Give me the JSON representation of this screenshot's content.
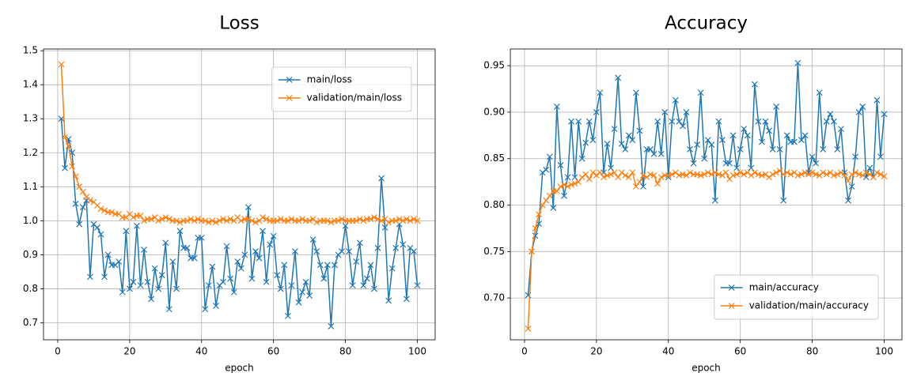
{
  "chart_data": [
    {
      "type": "line",
      "title": "Loss",
      "xlabel": "epoch",
      "x": [
        1,
        2,
        3,
        4,
        5,
        6,
        7,
        8,
        9,
        10,
        11,
        12,
        13,
        14,
        15,
        16,
        17,
        18,
        19,
        20,
        21,
        22,
        23,
        24,
        25,
        26,
        27,
        28,
        29,
        30,
        31,
        32,
        33,
        34,
        35,
        36,
        37,
        38,
        39,
        40,
        41,
        42,
        43,
        44,
        45,
        46,
        47,
        48,
        49,
        50,
        51,
        52,
        53,
        54,
        55,
        56,
        57,
        58,
        59,
        60,
        61,
        62,
        63,
        64,
        65,
        66,
        67,
        68,
        69,
        70,
        71,
        72,
        73,
        74,
        75,
        76,
        77,
        78,
        79,
        80,
        81,
        82,
        83,
        84,
        85,
        86,
        87,
        88,
        89,
        90,
        91,
        92,
        93,
        94,
        95,
        96,
        97,
        98,
        99,
        100
      ],
      "series": [
        {
          "name": "main/loss",
          "color": "#1f77b4",
          "values": [
            1.3,
            1.155,
            1.24,
            1.2,
            1.05,
            0.99,
            1.04,
            1.06,
            0.835,
            0.99,
            0.98,
            0.96,
            0.835,
            0.9,
            0.87,
            0.87,
            0.88,
            0.79,
            0.97,
            0.8,
            0.82,
            0.985,
            0.81,
            0.915,
            0.82,
            0.77,
            0.86,
            0.8,
            0.84,
            0.935,
            0.74,
            0.88,
            0.8,
            0.97,
            0.92,
            0.92,
            0.89,
            0.89,
            0.95,
            0.95,
            0.74,
            0.81,
            0.865,
            0.75,
            0.81,
            0.82,
            0.925,
            0.83,
            0.79,
            0.88,
            0.86,
            0.9,
            1.04,
            0.83,
            0.91,
            0.89,
            0.97,
            0.82,
            0.93,
            0.955,
            0.84,
            0.8,
            0.87,
            0.72,
            0.81,
            0.91,
            0.76,
            0.79,
            0.82,
            0.78,
            0.945,
            0.91,
            0.87,
            0.83,
            0.87,
            0.69,
            0.87,
            0.9,
            0.91,
            0.985,
            0.91,
            0.81,
            0.88,
            0.935,
            0.81,
            0.83,
            0.87,
            0.8,
            0.92,
            1.125,
            0.98,
            0.765,
            0.86,
            0.92,
            0.99,
            0.93,
            0.77,
            0.92,
            0.91,
            0.81
          ]
        },
        {
          "name": "validation/main/loss",
          "color": "#ff7f0e",
          "values": [
            1.46,
            1.245,
            1.22,
            1.16,
            1.13,
            1.1,
            1.085,
            1.07,
            1.06,
            1.055,
            1.045,
            1.035,
            1.03,
            1.025,
            1.025,
            1.02,
            1.02,
            1.01,
            1.01,
            1.02,
            1.01,
            1.015,
            1.015,
            1.0,
            1.005,
            1.005,
            1.01,
            1.0,
            1.005,
            1.01,
            1.005,
            1.0,
            1.0,
            0.995,
            1.0,
            1.0,
            1.005,
            1.0,
            1.005,
            1.0,
            1.0,
            0.995,
            1.0,
            0.995,
            1.0,
            1.005,
            1.0,
            1.005,
            1.0,
            1.01,
            1.0,
            1.005,
            1.005,
            1.0,
            0.995,
            1.0,
            1.01,
            1.005,
            1.0,
            1.0,
            1.0,
            1.005,
            1.0,
            1.0,
            1.005,
            1.0,
            1.0,
            1.005,
            1.0,
            1.0,
            1.005,
            0.995,
            1.0,
            1.0,
            1.0,
            0.995,
            1.0,
            1.0,
            1.005,
            1.0,
            1.0,
            1.0,
            1.0,
            1.005,
            1.0,
            1.005,
            1.005,
            1.01,
            1.005,
            1.0,
            1.005,
            0.995,
            1.0,
            1.0,
            1.005,
            1.0,
            1.005,
            1.0,
            1.005,
            1.0
          ]
        }
      ],
      "xlim": [
        -3.95,
        104.95
      ],
      "xticks": [
        0,
        20,
        40,
        60,
        80,
        100
      ],
      "ylim": [
        0.65,
        1.505
      ],
      "yticks": [
        0.7,
        0.8,
        0.9,
        {
          "value": 1,
          "label": "1.0"
        },
        1.1,
        1.2,
        1.3,
        1.4,
        1.5
      ],
      "grid": true,
      "legend": "upper right"
    },
    {
      "type": "line",
      "title": "Accuracy",
      "xlabel": "epoch",
      "x": [
        1,
        2,
        3,
        4,
        5,
        6,
        7,
        8,
        9,
        10,
        11,
        12,
        13,
        14,
        15,
        16,
        17,
        18,
        19,
        20,
        21,
        22,
        23,
        24,
        25,
        26,
        27,
        28,
        29,
        30,
        31,
        32,
        33,
        34,
        35,
        36,
        37,
        38,
        39,
        40,
        41,
        42,
        43,
        44,
        45,
        46,
        47,
        48,
        49,
        50,
        51,
        52,
        53,
        54,
        55,
        56,
        57,
        58,
        59,
        60,
        61,
        62,
        63,
        64,
        65,
        66,
        67,
        68,
        69,
        70,
        71,
        72,
        73,
        74,
        75,
        76,
        77,
        78,
        79,
        80,
        81,
        82,
        83,
        84,
        85,
        86,
        87,
        88,
        89,
        90,
        91,
        92,
        93,
        94,
        95,
        96,
        97,
        98,
        99,
        100
      ],
      "series": [
        {
          "name": "main/accuracy",
          "color": "#1f77b4",
          "values": [
            0.703,
            0.75,
            0.767,
            0.78,
            0.835,
            0.838,
            0.852,
            0.797,
            0.906,
            0.843,
            0.81,
            0.83,
            0.89,
            0.83,
            0.89,
            0.85,
            0.867,
            0.89,
            0.87,
            0.9,
            0.921,
            0.835,
            0.866,
            0.84,
            0.882,
            0.937,
            0.866,
            0.86,
            0.875,
            0.87,
            0.921,
            0.88,
            0.82,
            0.86,
            0.86,
            0.855,
            0.89,
            0.855,
            0.9,
            0.83,
            0.89,
            0.913,
            0.89,
            0.885,
            0.9,
            0.86,
            0.845,
            0.865,
            0.921,
            0.85,
            0.87,
            0.865,
            0.805,
            0.89,
            0.87,
            0.845,
            0.845,
            0.875,
            0.84,
            0.86,
            0.882,
            0.875,
            0.84,
            0.93,
            0.89,
            0.868,
            0.89,
            0.88,
            0.86,
            0.906,
            0.86,
            0.805,
            0.875,
            0.868,
            0.868,
            0.953,
            0.87,
            0.875,
            0.835,
            0.852,
            0.845,
            0.921,
            0.86,
            0.89,
            0.898,
            0.89,
            0.86,
            0.882,
            0.835,
            0.805,
            0.82,
            0.852,
            0.9,
            0.906,
            0.83,
            0.84,
            0.83,
            0.913,
            0.852,
            0.898
          ]
        },
        {
          "name": "validation/main/accuracy",
          "color": "#ff7f0e",
          "values": [
            0.667,
            0.75,
            0.775,
            0.79,
            0.8,
            0.805,
            0.81,
            0.815,
            0.815,
            0.82,
            0.822,
            0.82,
            0.822,
            0.823,
            0.825,
            0.83,
            0.833,
            0.828,
            0.835,
            0.832,
            0.835,
            0.83,
            0.832,
            0.833,
            0.835,
            0.83,
            0.835,
            0.832,
            0.83,
            0.835,
            0.82,
            0.825,
            0.832,
            0.83,
            0.833,
            0.832,
            0.823,
            0.83,
            0.832,
            0.832,
            0.833,
            0.835,
            0.832,
            0.833,
            0.832,
            0.835,
            0.833,
            0.833,
            0.832,
            0.833,
            0.835,
            0.833,
            0.835,
            0.833,
            0.832,
            0.835,
            0.828,
            0.832,
            0.833,
            0.835,
            0.833,
            0.835,
            0.832,
            0.835,
            0.833,
            0.832,
            0.833,
            0.83,
            0.833,
            0.835,
            0.837,
            0.833,
            0.835,
            0.833,
            0.835,
            0.832,
            0.833,
            0.835,
            0.833,
            0.835,
            0.833,
            0.832,
            0.835,
            0.833,
            0.835,
            0.832,
            0.833,
            0.835,
            0.832,
            0.826,
            0.833,
            0.835,
            0.833,
            0.832,
            0.835,
            0.833,
            0.83,
            0.835,
            0.833,
            0.831
          ]
        }
      ],
      "xlim": [
        -3.95,
        104.95
      ],
      "xticks": [
        0,
        20,
        40,
        60,
        80,
        100
      ],
      "ylim": [
        0.655,
        0.968
      ],
      "yticks": [
        {
          "value": 0.7,
          "label": "0.70"
        },
        0.75,
        {
          "value": 0.8,
          "label": "0.80"
        },
        0.85,
        {
          "value": 0.9,
          "label": "0.90"
        },
        0.95
      ],
      "grid": true,
      "legend": "lower right"
    }
  ]
}
